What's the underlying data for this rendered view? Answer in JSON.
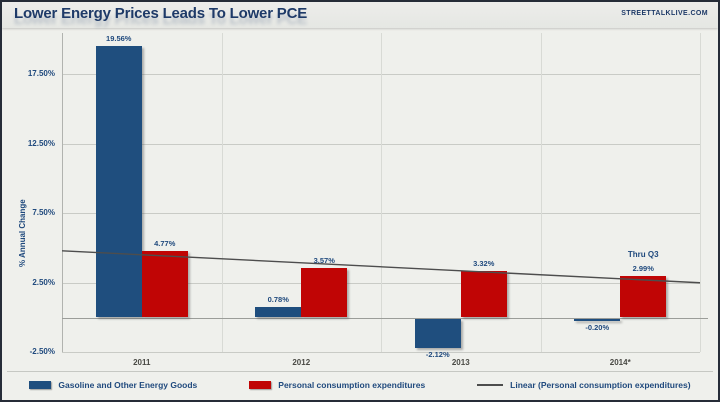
{
  "header": {
    "title": "Lower Energy Prices Leads To Lower PCE",
    "watermark": "STREETTALKLIVE.COM"
  },
  "chart_data": {
    "type": "bar",
    "title": "Lower Energy Prices Leads To Lower PCE",
    "ylabel": "% Annual Change",
    "xlabel": "",
    "categories": [
      "2011",
      "2012",
      "2013",
      "2014*"
    ],
    "series": [
      {
        "name": "Gasoline and Other Energy Goods",
        "color": "#1F4E7E",
        "values": [
          19.56,
          0.78,
          -2.12,
          -0.2
        ],
        "labels": [
          "19.56%",
          "0.78%",
          "-2.12%",
          "-0.20%"
        ]
      },
      {
        "name": "Personal consumption expenditures",
        "color": "#C00505",
        "values": [
          4.77,
          3.57,
          3.32,
          2.99
        ],
        "labels": [
          "4.77%",
          "3.57%",
          "3.32%",
          "2.99%"
        ]
      }
    ],
    "trendline": {
      "name": "Linear (Personal consumption expenditures)",
      "color": "#4d4d4d",
      "start_pct": 4.8,
      "end_pct": 2.5
    },
    "annotation": {
      "text": "Thru Q3",
      "category_index": 3,
      "series_index": 1
    },
    "yticks": [
      {
        "label": "17.50%",
        "value": 17.5
      },
      {
        "label": "12.50%",
        "value": 12.5
      },
      {
        "label": "7.50%",
        "value": 7.5
      },
      {
        "label": "2.50%",
        "value": 2.5
      },
      {
        "label": "-2.50%",
        "value": -2.5
      }
    ],
    "ylim": [
      -2.5,
      20.5
    ],
    "grid": true,
    "legend_position": "bottom"
  }
}
